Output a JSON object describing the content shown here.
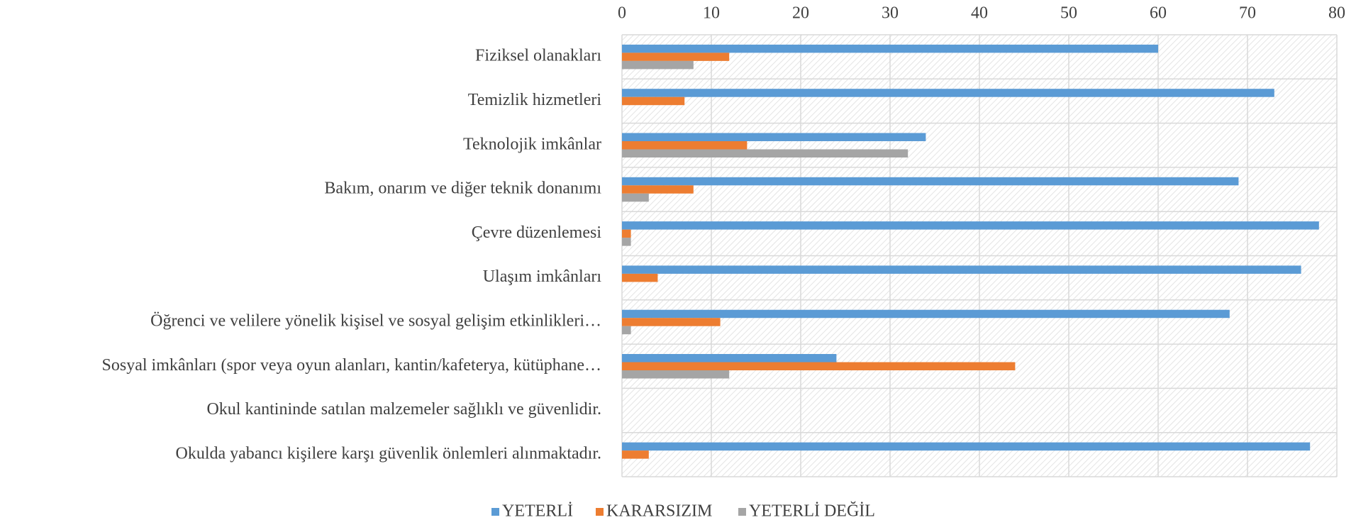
{
  "chart_data": {
    "type": "hbar",
    "categories": [
      "Fiziksel olanakları",
      "Temizlik hizmetleri",
      "Teknolojik imkânlar",
      "Bakım, onarım ve diğer teknik donanımı",
      "Çevre düzenlemesi",
      "Ulaşım imkânları",
      "Öğrenci ve velilere yönelik kişisel ve sosyal gelişim etkinlikleri…",
      "Sosyal imkânları (spor veya oyun alanları, kantin/kafeterya, kütüphane…",
      "Okul kantininde satılan malzemeler sağlıklı ve güvenlidir.",
      "Okulda yabancı kişilere karşı güvenlik önlemleri alınmaktadır."
    ],
    "series": [
      {
        "name": "YETERLİ",
        "color": "#5b9bd5",
        "values": [
          60,
          73,
          34,
          69,
          78,
          76,
          68,
          24,
          0,
          77
        ]
      },
      {
        "name": "KARARSIZIM",
        "color": "#ed7d31",
        "values": [
          12,
          7,
          14,
          8,
          1,
          4,
          11,
          44,
          0,
          3
        ]
      },
      {
        "name": "YETERLİ DEĞİL",
        "color": "#a5a5a5",
        "values": [
          8,
          0,
          32,
          3,
          1,
          0,
          1,
          12,
          0,
          0
        ]
      }
    ],
    "xlim": [
      0,
      80
    ],
    "xticks": [
      0,
      10,
      20,
      30,
      40,
      50,
      60,
      70,
      80
    ],
    "grid": true,
    "legend": "bottom"
  }
}
